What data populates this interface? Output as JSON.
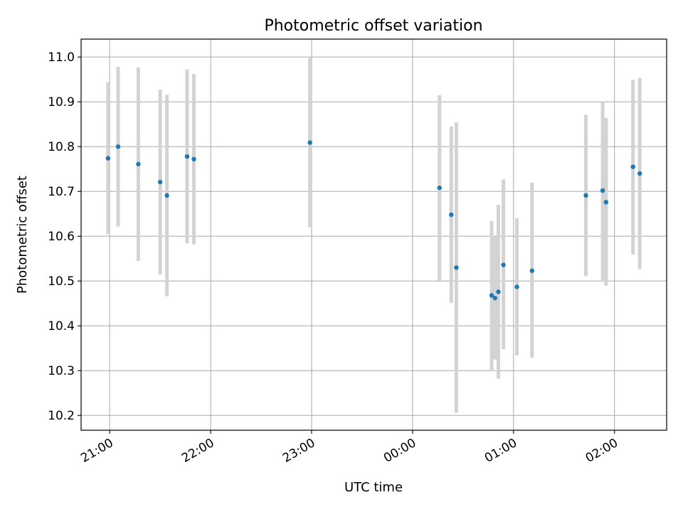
{
  "chart_data": {
    "type": "scatter",
    "title": "Photometric offset variation",
    "xlabel": "UTC time",
    "ylabel": "Photometric offset",
    "x_tick_labels": [
      "21:00",
      "22:00",
      "23:00",
      "00:00",
      "01:00",
      "02:00"
    ],
    "y_tick_labels": [
      "10.2",
      "10.3",
      "10.4",
      "10.5",
      "10.6",
      "10.7",
      "10.8",
      "10.9",
      "11.0"
    ],
    "x_ticks_hours_since_2100": [
      0,
      1,
      2,
      3,
      4,
      5
    ],
    "y_ticks": [
      10.2,
      10.3,
      10.4,
      10.5,
      10.6,
      10.7,
      10.8,
      10.9,
      11.0
    ],
    "xlim_utc": [
      "20:43",
      "02:31"
    ],
    "ylim": [
      10.167,
      11.04
    ],
    "grid": true,
    "colors": {
      "points": "#1f77b4",
      "error_bars": "#d3d3d3",
      "grid": "#b0b0b0"
    },
    "series": [
      {
        "points": [
          {
            "x": "20:59",
            "y": 10.774,
            "yerr_low": 10.604,
            "yerr_high": 10.944
          },
          {
            "x": "21:05",
            "y": 10.8,
            "yerr_low": 10.622,
            "yerr_high": 10.978
          },
          {
            "x": "21:17",
            "y": 10.761,
            "yerr_low": 10.545,
            "yerr_high": 10.977
          },
          {
            "x": "21:30",
            "y": 10.721,
            "yerr_low": 10.515,
            "yerr_high": 10.927
          },
          {
            "x": "21:34",
            "y": 10.691,
            "yerr_low": 10.466,
            "yerr_high": 10.916
          },
          {
            "x": "21:46",
            "y": 10.778,
            "yerr_low": 10.584,
            "yerr_high": 10.972
          },
          {
            "x": "21:50",
            "y": 10.772,
            "yerr_low": 10.582,
            "yerr_high": 10.962
          },
          {
            "x": "22:59",
            "y": 10.809,
            "yerr_low": 10.62,
            "yerr_high": 10.998
          },
          {
            "x": "00:16",
            "y": 10.708,
            "yerr_low": 10.501,
            "yerr_high": 10.915
          },
          {
            "x": "00:23",
            "y": 10.648,
            "yerr_low": 10.451,
            "yerr_high": 10.845
          },
          {
            "x": "00:26",
            "y": 10.53,
            "yerr_low": 10.206,
            "yerr_high": 10.854
          },
          {
            "x": "00:47",
            "y": 10.468,
            "yerr_low": 10.302,
            "yerr_high": 10.634
          },
          {
            "x": "00:49",
            "y": 10.462,
            "yerr_low": 10.325,
            "yerr_high": 10.599
          },
          {
            "x": "00:51",
            "y": 10.476,
            "yerr_low": 10.282,
            "yerr_high": 10.67
          },
          {
            "x": "00:54",
            "y": 10.536,
            "yerr_low": 10.348,
            "yerr_high": 10.727
          },
          {
            "x": "01:02",
            "y": 10.487,
            "yerr_low": 10.334,
            "yerr_high": 10.64
          },
          {
            "x": "01:11",
            "y": 10.523,
            "yerr_low": 10.329,
            "yerr_high": 10.72
          },
          {
            "x": "01:43",
            "y": 10.691,
            "yerr_low": 10.511,
            "yerr_high": 10.871
          },
          {
            "x": "01:53",
            "y": 10.702,
            "yerr_low": 10.502,
            "yerr_high": 10.9
          },
          {
            "x": "01:55",
            "y": 10.676,
            "yerr_low": 10.49,
            "yerr_high": 10.864
          },
          {
            "x": "02:11",
            "y": 10.755,
            "yerr_low": 10.559,
            "yerr_high": 10.949
          },
          {
            "x": "02:15",
            "y": 10.74,
            "yerr_low": 10.527,
            "yerr_high": 10.953
          }
        ]
      }
    ]
  }
}
